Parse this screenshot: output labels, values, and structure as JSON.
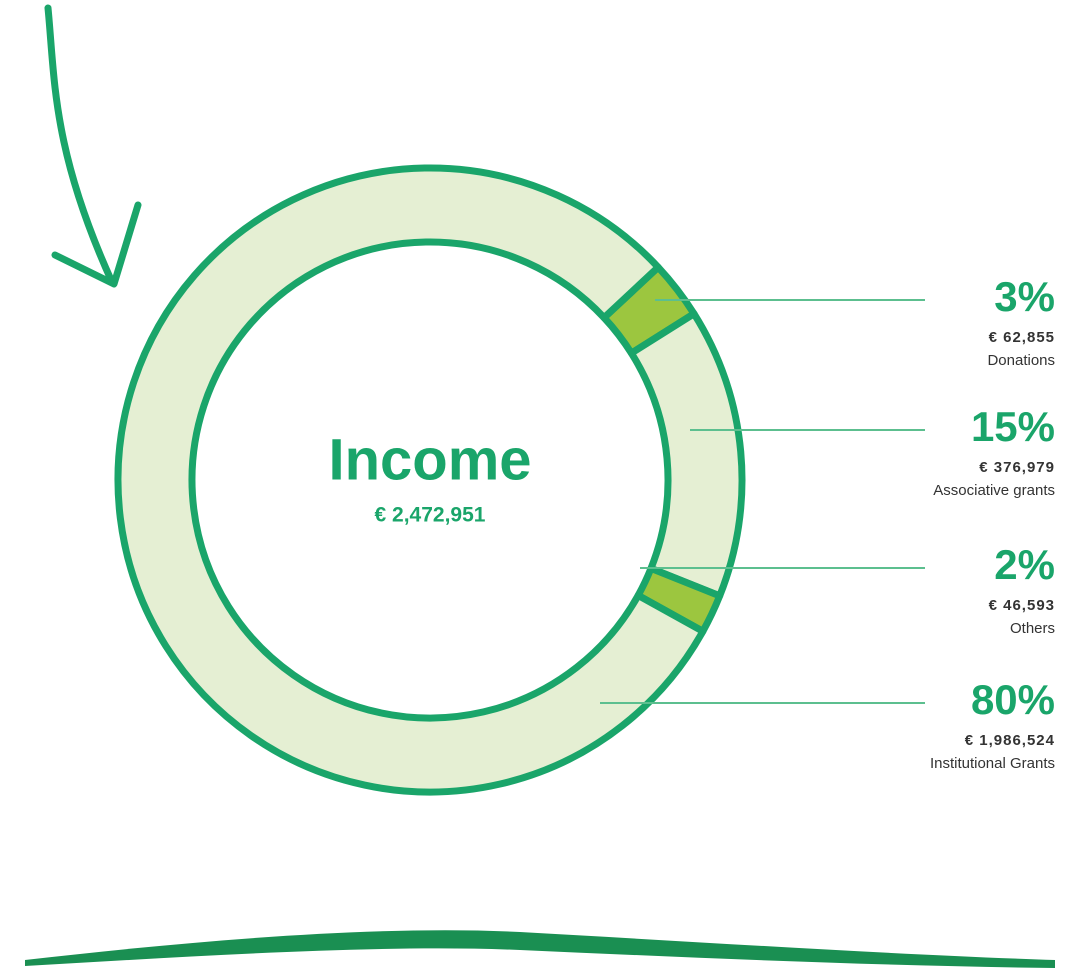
{
  "chart_data": {
    "type": "donut",
    "title": "Income",
    "total": {
      "value": 2472951,
      "label": "€ 2,472,951"
    },
    "categories": [
      "Donations",
      "Associative grants",
      "Others",
      "Institutional Grants"
    ],
    "values": [
      3,
      15,
      2,
      80
    ],
    "value_labels": [
      "3%",
      "15%",
      "2%",
      "80%"
    ],
    "amounts": [
      {
        "value": 62855,
        "label": "€ 62,855"
      },
      {
        "value": 376979,
        "label": "€ 376,979"
      },
      {
        "value": 46593,
        "label": "€ 46,593"
      },
      {
        "value": 1986524,
        "label": "€ 1,986,524"
      }
    ],
    "colors": [
      "#9cc63f",
      "#e5efd3",
      "#9cc63f",
      "#e5efd3"
    ],
    "border_color": "#1aa56a"
  }
}
